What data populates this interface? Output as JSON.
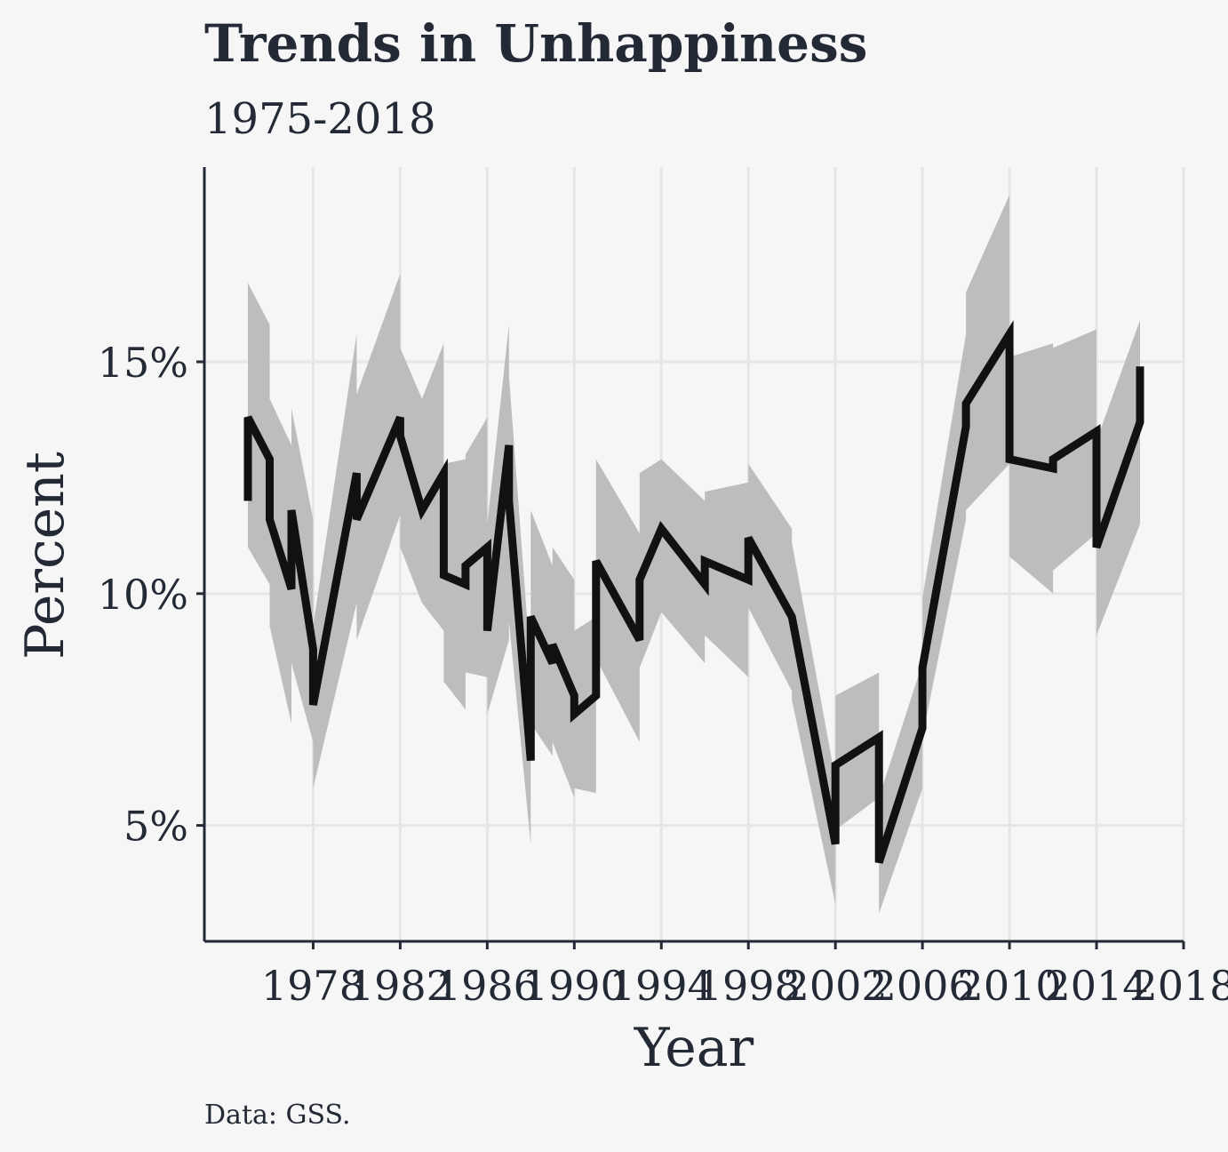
{
  "chart_data": {
    "type": "line",
    "title": "Trends in Unhappiness",
    "subtitle": "1975-2018",
    "caption": "Data: GSS.",
    "xlabel": "Year",
    "ylabel": "Percent",
    "xlim": [
      1973,
      2018
    ],
    "ylim": [
      2.5,
      19.2
    ],
    "x_ticks": [
      1978,
      1982,
      1986,
      1990,
      1994,
      1998,
      2002,
      2006,
      2010,
      2014,
      2018
    ],
    "x_tick_labels": [
      "1978",
      "1982",
      "1986",
      "1990",
      "1994",
      "1998",
      "2002",
      "2006",
      "2010",
      "2014",
      "2018"
    ],
    "y_ticks": [
      5,
      10,
      15
    ],
    "y_tick_labels": [
      "5%",
      "10%",
      "15%"
    ],
    "grid": true,
    "colors": {
      "line": "#111111",
      "ribbon": "#bdbdbd",
      "grid": "#e6e6e6",
      "axis": "#232a36",
      "background": "#f6f6f6"
    },
    "series": [
      {
        "style": "line with confidence ribbon",
        "x": [
          1975,
          1975,
          1976,
          1976,
          1977,
          1977,
          1978,
          1978,
          1980,
          1980,
          1982,
          1982,
          1983,
          1984,
          1984,
          1985,
          1985,
          1986,
          1986,
          1987,
          1987,
          1988,
          1988,
          1989,
          1989,
          1990,
          1990,
          1991,
          1991,
          1993,
          1993,
          1994,
          1996,
          1996,
          1998,
          1998,
          2000,
          2000,
          2002,
          2002,
          2004,
          2004,
          2006,
          2006,
          2008,
          2008,
          2010,
          2010,
          2012,
          2012,
          2014,
          2014,
          2016,
          2016
        ],
        "values": [
          12.0,
          13.8,
          12.9,
          11.6,
          10.1,
          11.8,
          8.8,
          7.6,
          12.6,
          11.6,
          13.8,
          13.4,
          11.8,
          12.6,
          10.4,
          10.2,
          10.6,
          11.0,
          9.2,
          13.2,
          12.0,
          6.4,
          9.5,
          8.5,
          8.9,
          7.8,
          7.4,
          7.8,
          10.7,
          9.0,
          10.3,
          11.4,
          10.2,
          10.7,
          10.3,
          11.2,
          9.5,
          9.5,
          4.6,
          6.3,
          6.9,
          4.2,
          7.1,
          8.4,
          13.6,
          14.1,
          15.6,
          12.9,
          12.7,
          12.9,
          13.5,
          11.0,
          13.7,
          14.9
        ],
        "lower": [
          10.9,
          11.0,
          10.2,
          9.3,
          7.2,
          8.5,
          6.8,
          5.8,
          9.8,
          9.0,
          11.7,
          11.0,
          9.8,
          9.2,
          8.1,
          7.5,
          8.3,
          8.2,
          7.4,
          9.0,
          9.4,
          4.6,
          7.2,
          6.5,
          6.8,
          5.6,
          5.8,
          5.7,
          8.6,
          6.8,
          8.4,
          9.6,
          8.5,
          9.1,
          8.2,
          9.7,
          7.9,
          7.7,
          3.3,
          4.9,
          5.6,
          3.1,
          5.8,
          6.9,
          11.6,
          11.8,
          12.8,
          10.8,
          10.0,
          10.5,
          11.3,
          9.1,
          11.5,
          11.8
        ],
        "upper": [
          13.3,
          16.7,
          15.8,
          14.2,
          13.2,
          14.0,
          11.6,
          9.3,
          15.6,
          14.3,
          16.9,
          15.3,
          14.2,
          15.4,
          12.8,
          12.9,
          13.0,
          13.8,
          11.5,
          15.8,
          14.7,
          8.4,
          11.8,
          10.6,
          11.0,
          10.3,
          9.2,
          9.5,
          12.9,
          11.3,
          12.6,
          12.9,
          12.0,
          12.2,
          12.4,
          12.8,
          11.4,
          11.1,
          6.0,
          7.8,
          8.3,
          5.6,
          8.5,
          9.9,
          15.6,
          16.5,
          18.6,
          15.1,
          15.4,
          15.3,
          15.7,
          13.3,
          15.9,
          15.6
        ]
      }
    ]
  }
}
